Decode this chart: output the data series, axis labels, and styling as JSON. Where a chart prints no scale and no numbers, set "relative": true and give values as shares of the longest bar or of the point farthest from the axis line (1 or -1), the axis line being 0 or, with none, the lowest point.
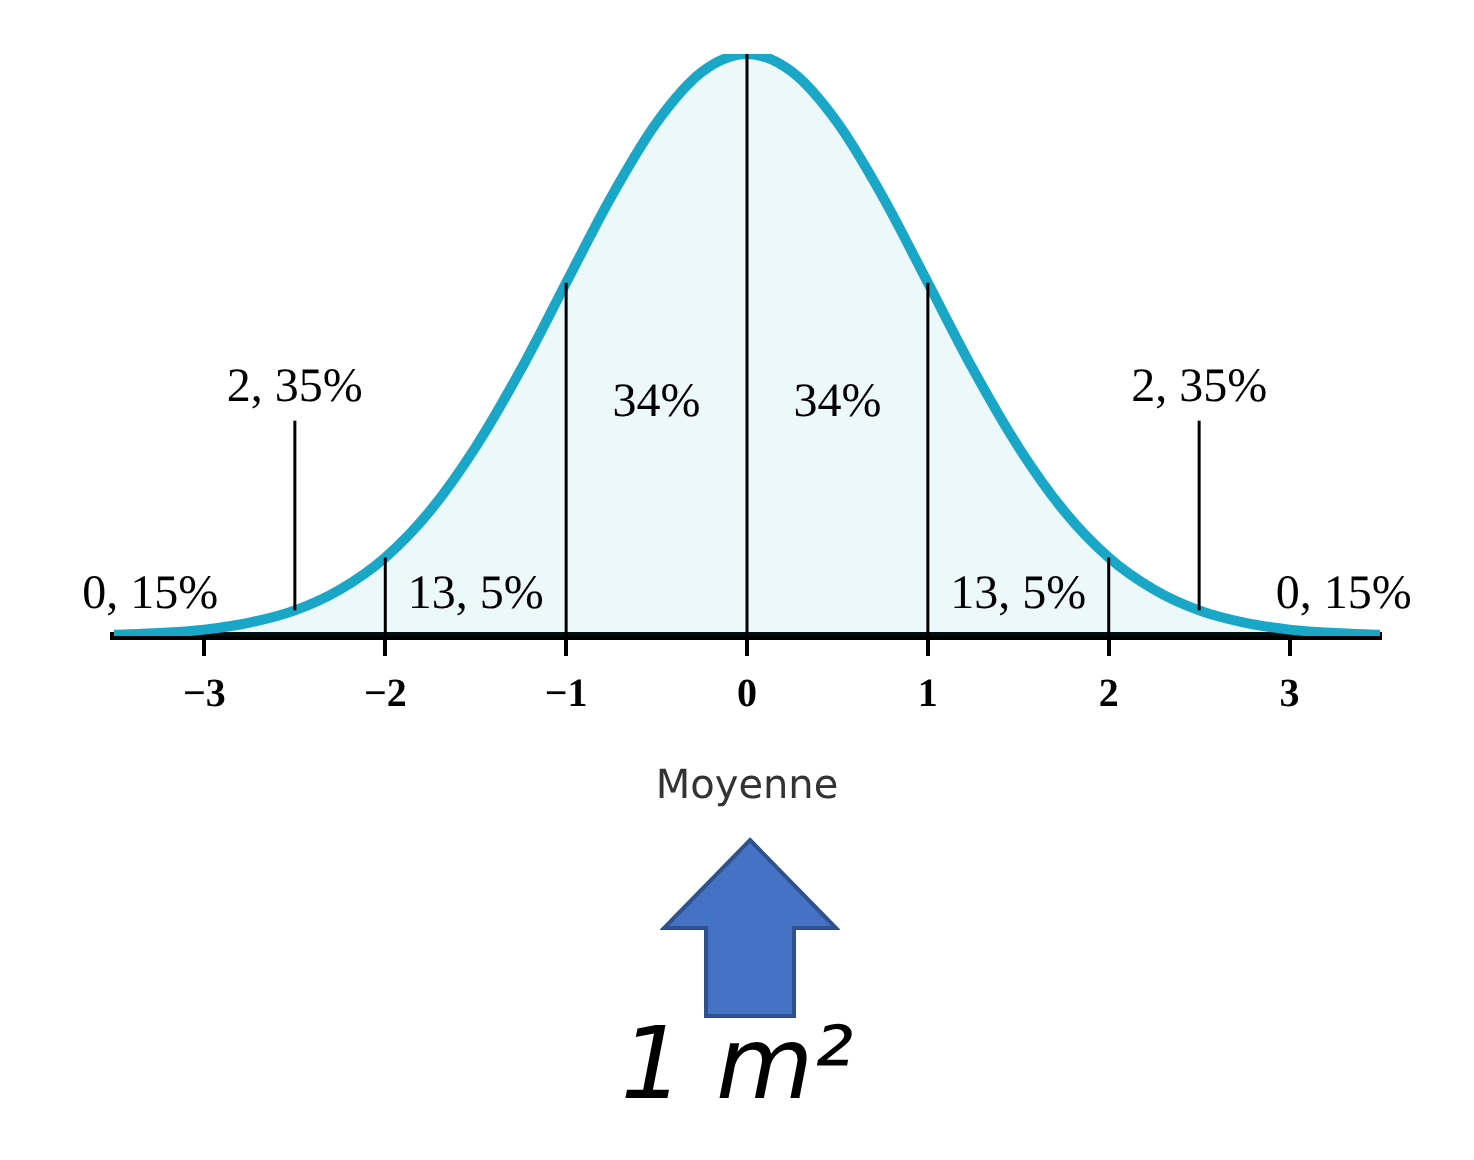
{
  "chart_data": {
    "type": "area",
    "relative": true,
    "xlabel": "Moyenne",
    "x": [
      -3.5,
      -3.25,
      -3,
      -2.75,
      -2.5,
      -2.25,
      -2,
      -1.75,
      -1.5,
      -1.25,
      -1,
      -0.75,
      -0.5,
      -0.25,
      0,
      0.25,
      0.5,
      0.75,
      1,
      1.25,
      1.5,
      1.75,
      2,
      2.25,
      2.5,
      2.75,
      3,
      3.25,
      3.5
    ],
    "series": [
      {
        "color": "#1aa7c7",
        "values": [
          0.002,
          0.005,
          0.011,
          0.023,
          0.044,
          0.08,
          0.135,
          0.216,
          0.325,
          0.458,
          0.607,
          0.755,
          0.882,
          0.969,
          1,
          0.969,
          0.882,
          0.755,
          0.607,
          0.458,
          0.325,
          0.216,
          0.135,
          0.08,
          0.044,
          0.023,
          0.011,
          0.005,
          0.002
        ]
      }
    ],
    "xlim": [
      -3.5,
      3.5
    ],
    "xticks": [
      -3,
      -2,
      -1,
      0,
      1,
      2,
      3
    ],
    "grid": false,
    "legend": false,
    "ref_lines": [
      {
        "axis": "x",
        "value": -2,
        "color": "#000000"
      },
      {
        "axis": "x",
        "value": -1,
        "color": "#000000"
      },
      {
        "axis": "x",
        "value": 0,
        "color": "#000000"
      },
      {
        "axis": "x",
        "value": 1,
        "color": "#000000"
      },
      {
        "axis": "x",
        "value": 2,
        "color": "#000000"
      }
    ],
    "annotations": [
      "2, 35%",
      "0, 15%",
      "13, 5%",
      "34%",
      "34%",
      "13, 5%",
      "2, 35%",
      "0, 15%",
      "1 m²"
    ]
  }
}
